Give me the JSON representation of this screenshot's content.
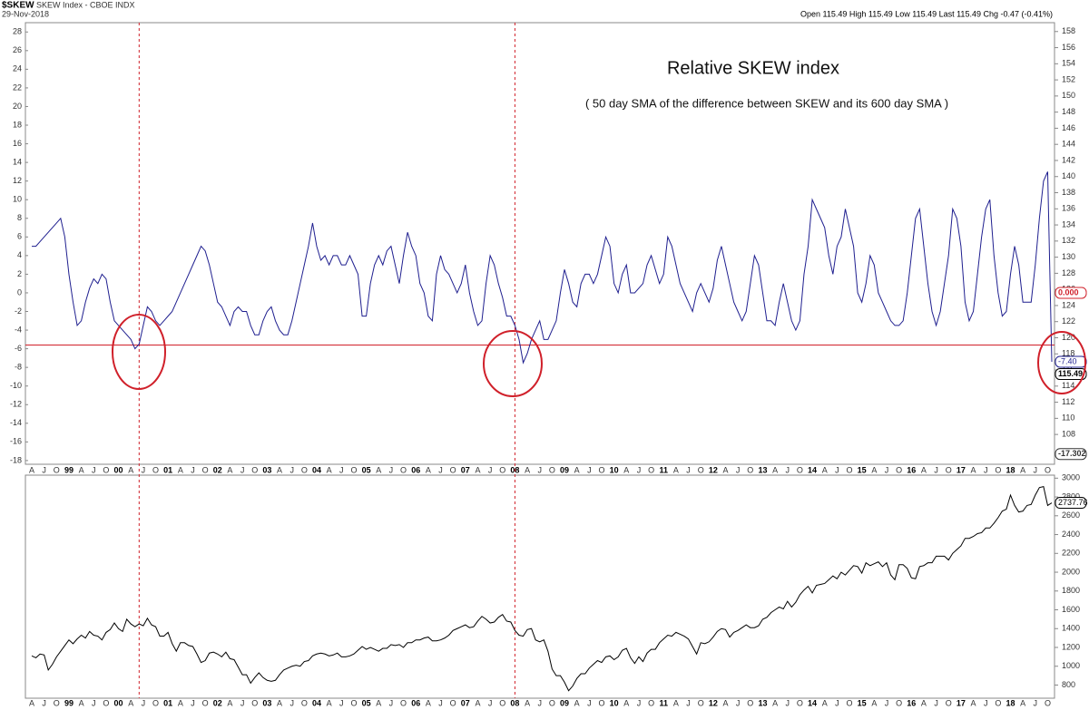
{
  "header": {
    "symbol": "$SKEW",
    "name": "SKEW Index - CBOE INDX",
    "date": "29-Nov-2018",
    "quote": "Open 115.49 High 115.49 Low 115.49 Last 115.49 Chg -0.47 (-0.41%)"
  },
  "chart_data": [
    {
      "type": "line",
      "title": "Relative SKEW index",
      "subtitle": "( 50 day SMA of the difference between SKEW and its 600 day SMA )",
      "categories": [
        "A",
        null,
        null,
        "J",
        null,
        null,
        "O",
        null,
        null,
        "99",
        null,
        null,
        "A",
        null,
        null,
        "J",
        null,
        null,
        "O",
        null,
        null,
        "00",
        null,
        null,
        "A",
        null,
        null,
        "J",
        null,
        null,
        "O",
        null,
        null,
        "01",
        null,
        null,
        "A",
        null,
        null,
        "J",
        null,
        null,
        "O",
        null,
        null,
        "02",
        null,
        null,
        "A",
        null,
        null,
        "J",
        null,
        null,
        "O",
        null,
        null,
        "03",
        null,
        null,
        "A",
        null,
        null,
        "J",
        null,
        null,
        "O",
        null,
        null,
        "04",
        null,
        null,
        "A",
        null,
        null,
        "J",
        null,
        null,
        "O",
        null,
        null,
        "05",
        null,
        null,
        "A",
        null,
        null,
        "J",
        null,
        null,
        "O",
        null,
        null,
        "06",
        null,
        null,
        "A",
        null,
        null,
        "J",
        null,
        null,
        "O",
        null,
        null,
        "07",
        null,
        null,
        "A",
        null,
        null,
        "J",
        null,
        null,
        "O",
        null,
        null,
        "08",
        null,
        null,
        "A",
        null,
        null,
        "J",
        null,
        null,
        "O",
        null,
        null,
        "09",
        null,
        null,
        "A",
        null,
        null,
        "J",
        null,
        null,
        "O",
        null,
        null,
        "10",
        null,
        null,
        "A",
        null,
        null,
        "J",
        null,
        null,
        "O",
        null,
        null,
        "11",
        null,
        null,
        "A",
        null,
        null,
        "J",
        null,
        null,
        "O",
        null,
        null,
        "12",
        null,
        null,
        "A",
        null,
        null,
        "J",
        null,
        null,
        "O",
        null,
        null,
        "13",
        null,
        null,
        "A",
        null,
        null,
        "J",
        null,
        null,
        "O",
        null,
        null,
        "14",
        null,
        null,
        "A",
        null,
        null,
        "J",
        null,
        null,
        "O",
        null,
        null,
        "15",
        null,
        null,
        "A",
        null,
        null,
        "J",
        null,
        null,
        "O",
        null,
        null,
        "16",
        null,
        null,
        "A",
        null,
        null,
        "J",
        null,
        null,
        "O",
        null,
        null,
        "17",
        null,
        null,
        "A",
        null,
        null,
        "J",
        null,
        null,
        "O",
        null,
        null,
        "18",
        null,
        null,
        "A",
        null,
        null,
        "J",
        null,
        null,
        "O",
        null
      ],
      "series": [
        {
          "color": "#1f1f8f",
          "values": [
            5,
            5,
            5.5,
            6,
            6.5,
            7,
            7.5,
            8,
            6,
            2,
            -1,
            -3.5,
            -3,
            -1,
            0.5,
            1.5,
            1,
            2,
            1.5,
            -1,
            -3,
            -3.5,
            -4,
            -4.5,
            -5,
            -6,
            -5.5,
            -3.5,
            -1.5,
            -2,
            -3,
            -3.5,
            -3,
            -2.5,
            -2,
            -1,
            0,
            1,
            2,
            3,
            4,
            5,
            4.5,
            3,
            1,
            -1,
            -1.5,
            -2.5,
            -3.5,
            -2,
            -1.5,
            -2,
            -2,
            -3.5,
            -4.5,
            -4.5,
            -3,
            -2,
            -1.5,
            -3,
            -4,
            -4.5,
            -4.5,
            -3,
            -1,
            1,
            3,
            5,
            7.5,
            5,
            3.5,
            4,
            3,
            4,
            4,
            3,
            3,
            4,
            3,
            2,
            -2.5,
            -2.5,
            1,
            3,
            4,
            3,
            4.5,
            5,
            3,
            1,
            4,
            6.5,
            5,
            4,
            1,
            0,
            -2.5,
            -3,
            2,
            4,
            2.5,
            2,
            1,
            0,
            1,
            3,
            0,
            -2,
            -3.5,
            -3,
            1,
            4,
            3,
            1,
            -0.5,
            -2.5,
            -2.5,
            -3.5,
            -5,
            -7.5,
            -6.5,
            -5,
            -4,
            -3,
            -5,
            -5,
            -4,
            -3,
            0,
            2.5,
            1,
            -1,
            -1.5,
            1,
            2,
            2,
            1,
            2,
            4,
            6,
            5,
            1,
            0,
            2,
            3,
            0,
            0,
            0.5,
            1,
            3,
            4,
            2.5,
            1,
            2,
            6,
            5,
            3,
            1,
            0,
            -1,
            -2,
            0,
            1,
            0,
            -1,
            0.5,
            3.5,
            5,
            3,
            1,
            -1,
            -2,
            -3,
            -2,
            1,
            4,
            3,
            0,
            -3,
            -3,
            -3.5,
            -1,
            1,
            -1,
            -3,
            -4,
            -3,
            2,
            5,
            10,
            9,
            8,
            7,
            4,
            2,
            5,
            6,
            9,
            7,
            5,
            0,
            -1,
            1,
            4,
            3,
            0,
            -1,
            -2,
            -3,
            -3.5,
            -3.5,
            -3,
            0,
            4,
            8,
            9,
            5,
            1,
            -2,
            -3.5,
            -2,
            1,
            4,
            9,
            8,
            5,
            -1,
            -3,
            -2,
            2,
            6,
            9,
            10,
            4,
            0,
            -2.5,
            -2,
            2,
            5,
            3,
            -1,
            -1,
            -1,
            3,
            8,
            12,
            13,
            -7.4
          ],
          "last_label": "-7.40"
        }
      ],
      "ylim": [
        -18.4,
        29
      ],
      "yticks": [
        -18,
        -16,
        -14,
        -12,
        -10,
        -8,
        -6,
        -4,
        -2,
        0,
        2,
        4,
        6,
        8,
        10,
        12,
        14,
        16,
        18,
        20,
        22,
        24,
        26,
        28
      ],
      "y2lim": [
        104.3,
        159.1
      ],
      "y2ticks": [
        108,
        110,
        112,
        114,
        116,
        118,
        120,
        122,
        124,
        126,
        128,
        130,
        132,
        134,
        136,
        138,
        140,
        142,
        144,
        146,
        148,
        150,
        152,
        154,
        156,
        158
      ],
      "hline": {
        "value": -5.6,
        "color": "#d0202a"
      },
      "vlines": [
        26,
        117
      ],
      "markers": [
        {
          "value": 0,
          "label": "0.000",
          "axis": "y",
          "color": "#d0202a"
        },
        {
          "value": -17.302,
          "label": "-17.302",
          "axis": "y",
          "color": "#333333"
        },
        {
          "value": 115.49,
          "label": "115.49",
          "axis": "y2",
          "color": "#000000"
        }
      ]
    },
    {
      "type": "line",
      "series": [
        {
          "color": "#000000",
          "values": [
            1110,
            1090,
            1130,
            1120,
            960,
            1020,
            1100,
            1160,
            1220,
            1280,
            1240,
            1290,
            1330,
            1300,
            1370,
            1330,
            1320,
            1280,
            1360,
            1390,
            1460,
            1400,
            1370,
            1500,
            1450,
            1420,
            1450,
            1430,
            1510,
            1440,
            1420,
            1320,
            1320,
            1360,
            1240,
            1160,
            1250,
            1250,
            1220,
            1210,
            1130,
            1040,
            1060,
            1140,
            1150,
            1130,
            1100,
            1150,
            1080,
            1070,
            990,
            910,
            910,
            820,
            880,
            930,
            880,
            850,
            840,
            850,
            910,
            960,
            980,
            1000,
            1010,
            1000,
            1050,
            1060,
            1110,
            1130,
            1140,
            1130,
            1110,
            1120,
            1140,
            1100,
            1100,
            1110,
            1130,
            1170,
            1210,
            1180,
            1200,
            1180,
            1160,
            1190,
            1190,
            1230,
            1220,
            1230,
            1200,
            1250,
            1250,
            1280,
            1280,
            1300,
            1310,
            1270,
            1270,
            1280,
            1300,
            1330,
            1380,
            1400,
            1420,
            1440,
            1410,
            1420,
            1480,
            1530,
            1500,
            1460,
            1470,
            1520,
            1550,
            1480,
            1470,
            1380,
            1330,
            1320,
            1390,
            1400,
            1280,
            1260,
            1280,
            1160,
            970,
            900,
            900,
            830,
            740,
            790,
            870,
            920,
            920,
            980,
            1020,
            1060,
            1040,
            1100,
            1110,
            1070,
            1100,
            1170,
            1190,
            1090,
            1030,
            1100,
            1050,
            1140,
            1180,
            1180,
            1250,
            1290,
            1330,
            1320,
            1360,
            1340,
            1320,
            1290,
            1210,
            1130,
            1250,
            1240,
            1260,
            1310,
            1370,
            1400,
            1390,
            1310,
            1360,
            1380,
            1410,
            1440,
            1410,
            1410,
            1430,
            1500,
            1520,
            1570,
            1600,
            1630,
            1610,
            1690,
            1630,
            1680,
            1760,
            1810,
            1850,
            1780,
            1860,
            1870,
            1880,
            1920,
            1960,
            1930,
            2000,
            1970,
            2020,
            2070,
            2060,
            1990,
            2100,
            2070,
            2090,
            2110,
            2060,
            2100,
            1970,
            1920,
            2080,
            2080,
            2040,
            1940,
            1930,
            2060,
            2070,
            2100,
            2100,
            2170,
            2170,
            2170,
            2130,
            2200,
            2240,
            2280,
            2360,
            2360,
            2380,
            2410,
            2420,
            2470,
            2470,
            2520,
            2580,
            2650,
            2670,
            2820,
            2710,
            2640,
            2650,
            2710,
            2720,
            2820,
            2900,
            2910,
            2710,
            2737.76
          ],
          "last_label": "2737.76"
        }
      ],
      "ylim": [
        660,
        3032
      ],
      "yticks": [
        800,
        1000,
        1200,
        1400,
        1600,
        1800,
        2000,
        2200,
        2400,
        2600,
        2800,
        3000
      ]
    }
  ]
}
